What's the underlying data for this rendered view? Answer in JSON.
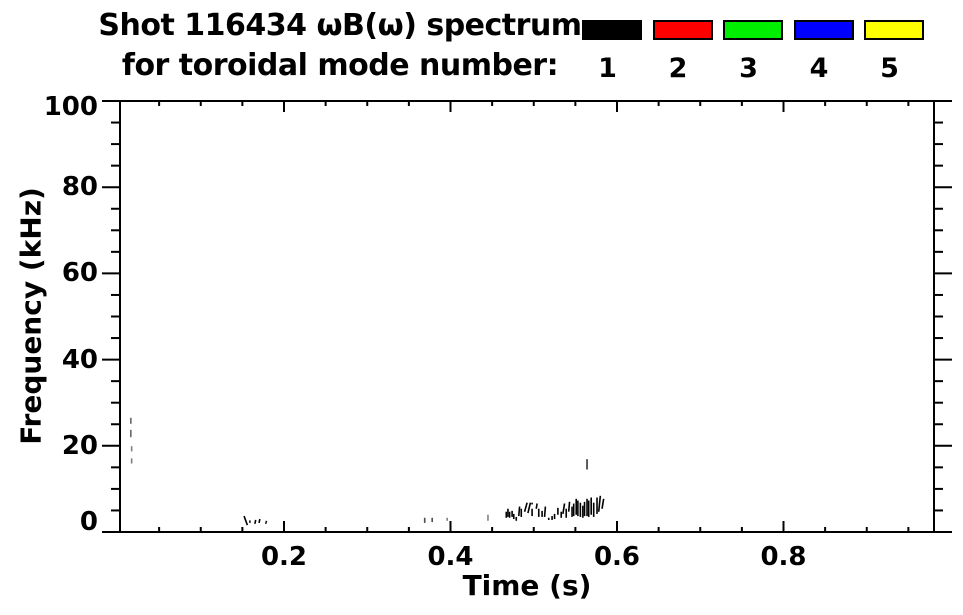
{
  "title": {
    "line1": "Shot 116434 ωB(ω) spectrum",
    "line2": "for toroidal mode number:"
  },
  "legend": {
    "items": [
      {
        "label": "1",
        "color": "#000000"
      },
      {
        "label": "2",
        "color": "#ff0000"
      },
      {
        "label": "3",
        "color": "#00ee00"
      },
      {
        "label": "4",
        "color": "#0000ff"
      },
      {
        "label": "5",
        "color": "#ffff00"
      }
    ]
  },
  "chart_data": {
    "type": "scatter",
    "title": "Shot 116434 ωB(ω) spectrum for toroidal mode number: 1 2 3 4 5",
    "xlabel": "Time (s)",
    "ylabel": "Frequency (kHz)",
    "xlim": [
      0.0,
      0.98
    ],
    "ylim": [
      0,
      100
    ],
    "grid": false,
    "legend_position": "top-right-above-plot",
    "x_major_ticks": [
      0.2,
      0.4,
      0.6,
      0.8
    ],
    "x_tick_labels": [
      "0.2",
      "0.4",
      "0.6",
      "0.8"
    ],
    "x_minor_step": 0.05,
    "y_major_ticks": [
      0,
      20,
      40,
      60,
      80,
      100
    ],
    "y_tick_labels": [
      "0",
      "20",
      "40",
      "60",
      "80",
      "100"
    ],
    "y_minor_step": 5,
    "series": [
      {
        "name": "1",
        "color": "#000000",
        "note": "segments are [t1_s, f1_kHz, t2_s, f2_kHz, opacity]; all visible marks belong to mode n=1 (black)",
        "segments": [
          [
            0.016,
            25.1,
            0.016,
            26.5,
            0.6
          ],
          [
            0.016,
            22.0,
            0.016,
            23.7,
            0.6
          ],
          [
            0.017,
            18.7,
            0.017,
            19.9,
            0.5
          ],
          [
            0.017,
            15.9,
            0.017,
            17.1,
            0.5
          ],
          [
            0.152,
            3.7,
            0.156,
            1.6,
            1
          ],
          [
            0.159,
            2.1,
            0.159,
            2.7,
            0.9
          ],
          [
            0.165,
            1.9,
            0.166,
            2.8,
            1
          ],
          [
            0.17,
            2.1,
            0.171,
            3.0,
            1
          ],
          [
            0.178,
            1.9,
            0.179,
            2.6,
            0.9
          ],
          [
            0.369,
            2.1,
            0.369,
            3.3,
            0.7
          ],
          [
            0.378,
            2.3,
            0.378,
            3.3,
            0.7
          ],
          [
            0.396,
            2.6,
            0.396,
            3.3,
            0.5
          ],
          [
            0.445,
            2.6,
            0.445,
            4.0,
            0.5
          ],
          [
            0.467,
            3.3,
            0.467,
            4.7,
            1
          ],
          [
            0.469,
            3.5,
            0.469,
            5.4,
            1
          ],
          [
            0.471,
            3.3,
            0.471,
            4.7,
            1
          ],
          [
            0.474,
            3.5,
            0.474,
            4.9,
            1
          ],
          [
            0.476,
            3.0,
            0.476,
            4.2,
            1
          ],
          [
            0.479,
            2.6,
            0.479,
            3.5,
            1
          ],
          [
            0.482,
            3.7,
            0.483,
            5.9,
            1
          ],
          [
            0.485,
            3.5,
            0.485,
            5.4,
            1
          ],
          [
            0.489,
            4.7,
            0.492,
            6.8,
            1
          ],
          [
            0.493,
            4.4,
            0.496,
            6.8,
            1
          ],
          [
            0.498,
            3.7,
            0.498,
            5.4,
            1
          ],
          [
            0.498,
            6.4,
            0.498,
            6.8,
            1
          ],
          [
            0.503,
            5.4,
            0.504,
            6.6,
            1
          ],
          [
            0.506,
            3.5,
            0.506,
            5.4,
            1
          ],
          [
            0.51,
            3.5,
            0.51,
            4.9,
            1
          ],
          [
            0.513,
            3.5,
            0.514,
            5.9,
            1
          ],
          [
            0.518,
            2.8,
            0.518,
            3.3,
            1
          ],
          [
            0.522,
            2.8,
            0.522,
            3.7,
            1
          ],
          [
            0.525,
            3.0,
            0.525,
            4.2,
            1
          ],
          [
            0.529,
            4.0,
            0.529,
            5.6,
            1
          ],
          [
            0.533,
            3.3,
            0.533,
            4.7,
            1
          ],
          [
            0.535,
            4.2,
            0.537,
            6.6,
            1
          ],
          [
            0.539,
            3.3,
            0.539,
            5.4,
            1
          ],
          [
            0.542,
            4.7,
            0.543,
            7.0,
            1
          ],
          [
            0.546,
            3.5,
            0.546,
            5.9,
            1
          ],
          [
            0.548,
            3.7,
            0.548,
            6.6,
            1
          ],
          [
            0.551,
            4.0,
            0.551,
            7.7,
            1
          ],
          [
            0.553,
            3.7,
            0.553,
            7.3,
            1
          ],
          [
            0.556,
            3.5,
            0.556,
            6.8,
            1
          ],
          [
            0.559,
            3.3,
            0.559,
            6.1,
            1
          ],
          [
            0.561,
            3.7,
            0.561,
            7.0,
            1
          ],
          [
            0.564,
            3.7,
            0.564,
            7.7,
            1
          ],
          [
            0.566,
            3.5,
            0.566,
            7.3,
            1
          ],
          [
            0.569,
            4.0,
            0.569,
            8.0,
            1
          ],
          [
            0.572,
            3.5,
            0.572,
            6.8,
            1
          ],
          [
            0.576,
            4.2,
            0.576,
            8.0,
            1
          ],
          [
            0.578,
            4.7,
            0.58,
            8.4,
            1
          ],
          [
            0.582,
            5.4,
            0.584,
            7.7,
            1
          ],
          [
            0.564,
            14.5,
            0.564,
            16.9,
            0.8
          ]
        ]
      },
      {
        "name": "2",
        "color": "#ff0000",
        "segments": []
      },
      {
        "name": "3",
        "color": "#00ee00",
        "segments": []
      },
      {
        "name": "4",
        "color": "#0000ff",
        "segments": []
      },
      {
        "name": "5",
        "color": "#ffff00",
        "segments": []
      }
    ]
  }
}
